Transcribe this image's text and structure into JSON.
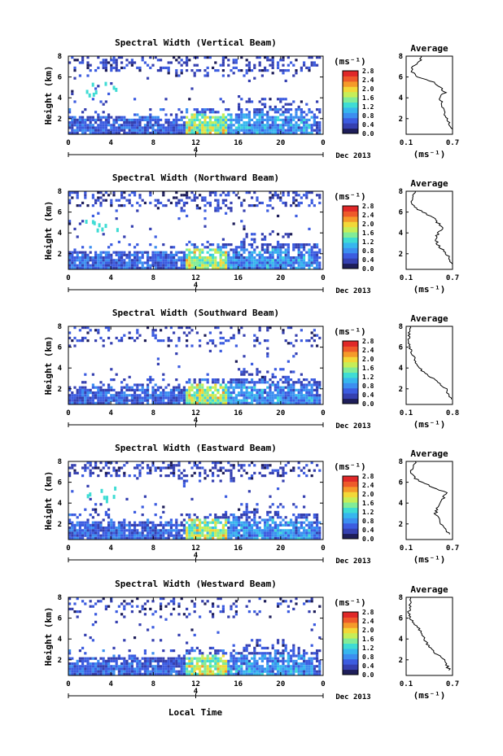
{
  "figure": {
    "xlabel": "Local Time",
    "date_label": "Dec 2013",
    "day_marker": "4",
    "colorbar_unit": "(ms⁻¹)",
    "avg_xlabel": "(ms⁻¹)",
    "avg_title": "Average"
  },
  "colors": {
    "scale": [
      "#1e1e5a",
      "#3540b0",
      "#3c5ce0",
      "#3c8ef0",
      "#37b6ee",
      "#3fdcd4",
      "#82ec98",
      "#c6ee58",
      "#f2d838",
      "#f59a2a",
      "#ee5a2a",
      "#e02828"
    ]
  },
  "chart_data": [
    {
      "type": "heatmap",
      "title": "Spectral Width (Vertical Beam)",
      "xlabel": "Local Time",
      "ylabel": "Height (km)",
      "xlim": [
        0,
        24
      ],
      "ylim": [
        0.5,
        8
      ],
      "x_ticks": [
        "0",
        "4",
        "8",
        "12",
        "16",
        "20",
        "0"
      ],
      "y_ticks": [
        "2",
        "4",
        "6",
        "8"
      ],
      "colorbar": {
        "range": [
          0.0,
          2.8
        ],
        "ticks": [
          "0.0",
          "0.4",
          "0.8",
          "1.2",
          "1.6",
          "2.0",
          "2.4",
          "2.8"
        ]
      },
      "average": {
        "xlim": [
          0.1,
          0.7
        ],
        "x_ticks": [
          "0.1",
          "0.7"
        ],
        "ylim": [
          0.5,
          8
        ],
        "y_ticks": [
          "2",
          "4",
          "6",
          "8"
        ],
        "profile_height": [
          1,
          1.5,
          2,
          2.5,
          3,
          3.5,
          4,
          4.5,
          5,
          5.5,
          6,
          6.5,
          7,
          7.5,
          8
        ],
        "profile_value": [
          0.68,
          0.66,
          0.62,
          0.6,
          0.58,
          0.57,
          0.52,
          0.6,
          0.55,
          0.45,
          0.25,
          0.18,
          0.18,
          0.28,
          0.3
        ]
      }
    },
    {
      "type": "heatmap",
      "title": "Spectral Width (Northward Beam)",
      "xlabel": "Local Time",
      "ylabel": "Height (km)",
      "xlim": [
        0,
        24
      ],
      "ylim": [
        0.5,
        8
      ],
      "x_ticks": [
        "0",
        "4",
        "8",
        "12",
        "16",
        "20",
        "0"
      ],
      "y_ticks": [
        "2",
        "4",
        "6",
        "8"
      ],
      "colorbar": {
        "range": [
          0.0,
          2.8
        ],
        "ticks": [
          "0.0",
          "0.4",
          "0.8",
          "1.2",
          "1.6",
          "2.0",
          "2.4",
          "2.8"
        ]
      },
      "average": {
        "xlim": [
          0.1,
          0.7
        ],
        "x_ticks": [
          "0.1",
          "0.7"
        ],
        "ylim": [
          0.5,
          8
        ],
        "y_ticks": [
          "2",
          "4",
          "6",
          "8"
        ],
        "profile_height": [
          1,
          1.5,
          2,
          2.5,
          3,
          3.5,
          4,
          4.5,
          5,
          5.5,
          6,
          6.5,
          7,
          7.5,
          8
        ],
        "profile_value": [
          0.7,
          0.66,
          0.62,
          0.55,
          0.5,
          0.48,
          0.52,
          0.58,
          0.5,
          0.45,
          0.32,
          0.2,
          0.16,
          0.18,
          0.22
        ]
      }
    },
    {
      "type": "heatmap",
      "title": "Spectral Width (Southward Beam)",
      "xlabel": "Local Time",
      "ylabel": "Height (km)",
      "xlim": [
        0,
        24
      ],
      "ylim": [
        0.5,
        8
      ],
      "x_ticks": [
        "0",
        "4",
        "8",
        "12",
        "16",
        "20",
        "0"
      ],
      "y_ticks": [
        "2",
        "4",
        "6",
        "8"
      ],
      "colorbar": {
        "range": [
          0.0,
          2.8
        ],
        "ticks": [
          "0.0",
          "0.4",
          "0.8",
          "1.2",
          "1.6",
          "2.0",
          "2.4",
          "2.8"
        ]
      },
      "average": {
        "xlim": [
          0.1,
          0.8
        ],
        "x_ticks": [
          "0.1",
          "0.8"
        ],
        "ylim": [
          0.5,
          8
        ],
        "y_ticks": [
          "2",
          "4",
          "6",
          "8"
        ],
        "profile_height": [
          1,
          1.5,
          2,
          2.5,
          3,
          3.5,
          4,
          4.5,
          5,
          5.5,
          6,
          6.5,
          7,
          7.5,
          8
        ],
        "profile_value": [
          0.78,
          0.74,
          0.7,
          0.6,
          0.5,
          0.38,
          0.3,
          0.25,
          0.22,
          0.18,
          0.15,
          0.14,
          0.14,
          0.15,
          0.16
        ]
      }
    },
    {
      "type": "heatmap",
      "title": "Spectral Width (Eastward Beam)",
      "xlabel": "Local Time",
      "ylabel": "Height (km)",
      "xlim": [
        0,
        24
      ],
      "ylim": [
        0.5,
        8
      ],
      "x_ticks": [
        "0",
        "4",
        "8",
        "12",
        "16",
        "20",
        "0"
      ],
      "y_ticks": [
        "2",
        "4",
        "6",
        "8"
      ],
      "colorbar": {
        "range": [
          0.0,
          2.8
        ],
        "ticks": [
          "0.0",
          "0.4",
          "0.8",
          "1.2",
          "1.6",
          "2.0",
          "2.4",
          "2.8"
        ]
      },
      "average": {
        "xlim": [
          0.1,
          0.7
        ],
        "x_ticks": [
          "0.1",
          "0.7"
        ],
        "ylim": [
          0.5,
          8
        ],
        "y_ticks": [
          "2",
          "4",
          "6",
          "8"
        ],
        "profile_height": [
          1,
          1.5,
          2,
          2.5,
          3,
          3.5,
          4,
          4.5,
          5,
          5.5,
          6,
          6.5,
          7,
          7.5,
          8
        ],
        "profile_value": [
          0.66,
          0.6,
          0.56,
          0.52,
          0.48,
          0.5,
          0.52,
          0.58,
          0.62,
          0.45,
          0.3,
          0.2,
          0.16,
          0.18,
          0.22
        ]
      }
    },
    {
      "type": "heatmap",
      "title": "Spectral Width (Westward Beam)",
      "xlabel": "Local Time",
      "ylabel": "Height (km)",
      "xlim": [
        0,
        24
      ],
      "ylim": [
        0.5,
        8
      ],
      "x_ticks": [
        "0",
        "4",
        "8",
        "12",
        "16",
        "20",
        "0"
      ],
      "y_ticks": [
        "2",
        "4",
        "6",
        "8"
      ],
      "colorbar": {
        "range": [
          0.0,
          2.8
        ],
        "ticks": [
          "0.0",
          "0.4",
          "0.8",
          "1.2",
          "1.6",
          "2.0",
          "2.4",
          "2.8"
        ]
      },
      "average": {
        "xlim": [
          0.1,
          0.7
        ],
        "x_ticks": [
          "0.1",
          "0.7"
        ],
        "ylim": [
          0.5,
          8
        ],
        "y_ticks": [
          "2",
          "4",
          "6",
          "8"
        ],
        "profile_height": [
          1,
          1.5,
          2,
          2.5,
          3,
          3.5,
          4,
          4.5,
          5,
          5.5,
          6,
          6.5,
          7,
          7.5,
          8
        ],
        "profile_value": [
          0.66,
          0.62,
          0.6,
          0.5,
          0.42,
          0.38,
          0.34,
          0.3,
          0.26,
          0.2,
          0.16,
          0.14,
          0.14,
          0.15,
          0.16
        ]
      }
    }
  ]
}
